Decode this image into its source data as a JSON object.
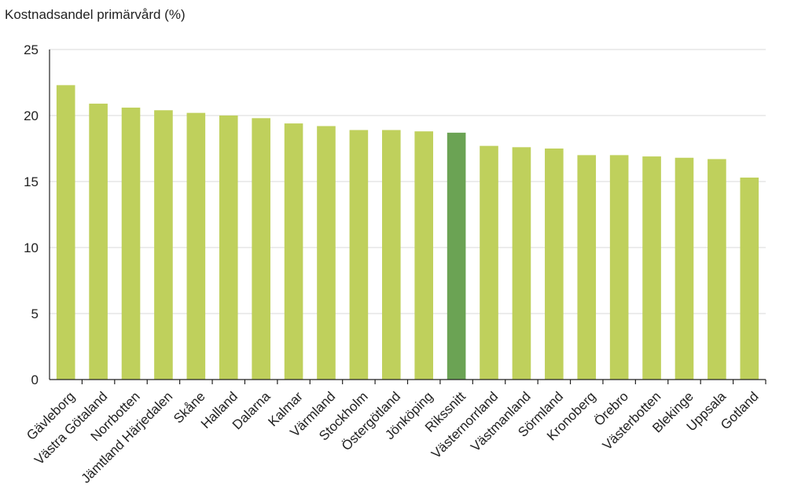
{
  "chart_data": {
    "type": "bar",
    "title": "",
    "ylabel": "Kostnadsandel primärvård (%)",
    "xlabel": "",
    "ylim": [
      0,
      25
    ],
    "yticks": [
      0,
      5,
      10,
      15,
      20,
      25
    ],
    "grid": true,
    "legend": "none",
    "categories": [
      "Gävleborg",
      "Västra Götaland",
      "Norrbotten",
      "Jämtland Härjedalen",
      "Skåne",
      "Halland",
      "Dalarna",
      "Kalmar",
      "Värmland",
      "Stockholm",
      "Östergötland",
      "Jönköping",
      "Rikssnitt",
      "Västernorrland",
      "Västmanland",
      "Sörmland",
      "Kronoberg",
      "Örebro",
      "Västerbotten",
      "Blekinge",
      "Uppsala",
      "Gotland"
    ],
    "values": [
      22.3,
      20.9,
      20.6,
      20.4,
      20.2,
      20.0,
      19.8,
      19.4,
      19.2,
      18.9,
      18.9,
      18.8,
      18.7,
      17.7,
      17.6,
      17.5,
      17.0,
      17.0,
      16.9,
      16.8,
      16.7,
      15.3
    ],
    "highlight": "Rikssnitt",
    "colors": {
      "bar": "#bfd05c",
      "highlight": "#6ba354"
    }
  }
}
